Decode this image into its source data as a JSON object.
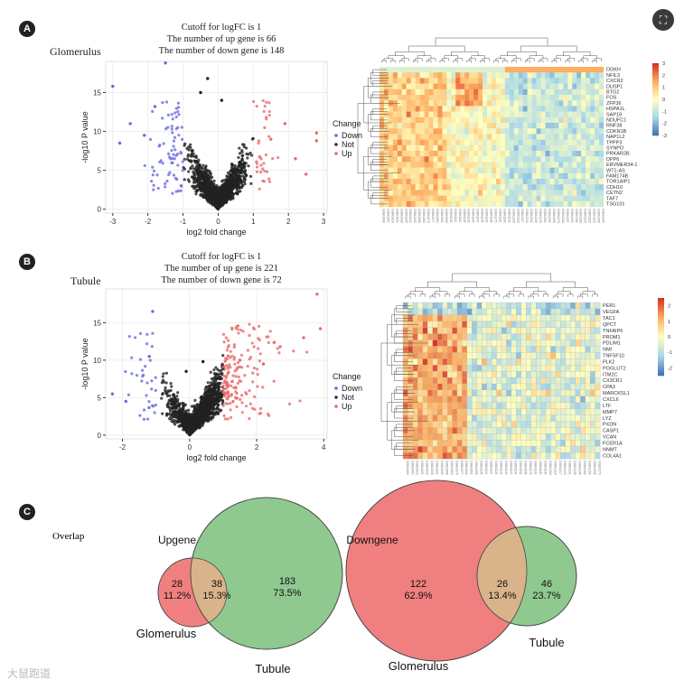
{
  "panel_labels": [
    "A",
    "B",
    "C"
  ],
  "panelA": {
    "tissue": "Glomerulus",
    "caption": [
      "Cutoff for logFC is 1",
      "The number of up gene is 66",
      "The number of down gene is 148"
    ]
  },
  "panelB": {
    "tissue": "Tubule",
    "caption": [
      "Cutoff for logFC is 1",
      "The number of up gene is 221",
      "The number of down gene is 72"
    ]
  },
  "legend": {
    "title": "Change",
    "items": [
      {
        "label": "Down",
        "color": "#6b6bdc"
      },
      {
        "label": "Not",
        "color": "#333333"
      },
      {
        "label": "Up",
        "color": "#e86a6a"
      }
    ]
  },
  "chart_data": [
    {
      "type": "scatter",
      "title": "Glomerulus volcano plot",
      "xlabel": "log2 fold change",
      "ylabel": "-log10 P value",
      "xlim": [
        -3.2,
        3.1
      ],
      "ylim": [
        -0.5,
        19
      ],
      "xticks": [
        "-3",
        "-2",
        "-1",
        "0",
        "1",
        "2",
        "3"
      ],
      "yticks": [
        "0",
        "5",
        "10",
        "15"
      ],
      "cutoff_logFC": 1,
      "up_count": 66,
      "down_count": 148,
      "highlight_points": {
        "Down": [
          [
            -3,
            15.8
          ],
          [
            -1.5,
            18.8
          ],
          [
            -2.5,
            11
          ],
          [
            -2.1,
            9.5
          ],
          [
            -1.8,
            13.2
          ],
          [
            -2.8,
            8.5
          ]
        ],
        "Up": [
          [
            2.8,
            9.8
          ],
          [
            2.2,
            6.5
          ],
          [
            1.9,
            11
          ],
          [
            1.5,
            9
          ],
          [
            2.5,
            4.5
          ],
          [
            2.8,
            8.8
          ]
        ],
        "Not": [
          [
            -0.3,
            16.8
          ],
          [
            0.1,
            14
          ],
          [
            -0.5,
            15
          ]
        ]
      }
    },
    {
      "type": "scatter",
      "title": "Tubule volcano plot",
      "xlabel": "log2 fold change",
      "ylabel": "-log10 P value",
      "xlim": [
        -2.5,
        4.1
      ],
      "ylim": [
        -0.5,
        19.5
      ],
      "xticks": [
        "-2",
        "0",
        "2",
        "4"
      ],
      "yticks": [
        "0",
        "5",
        "10",
        "15"
      ],
      "cutoff_logFC": 1,
      "up_count": 221,
      "down_count": 72,
      "highlight_points": {
        "Down": [
          [
            -1.1,
            16.5
          ],
          [
            -2.3,
            5.5
          ],
          [
            -1.9,
            4.5
          ],
          [
            -1.2,
            10.5
          ]
        ],
        "Up": [
          [
            3.8,
            18.8
          ],
          [
            3.9,
            14.2
          ],
          [
            3.4,
            13
          ],
          [
            2.7,
            11.8
          ],
          [
            2.2,
            9.5
          ],
          [
            1.5,
            10
          ]
        ],
        "Not": [
          [
            -0.1,
            8.5
          ],
          [
            0.4,
            9.8
          ]
        ]
      }
    },
    {
      "type": "heatmap",
      "title": "Glomerulus heatmap",
      "rows": [
        "DGKH",
        "NFIL3",
        "CXCR2",
        "DUSP1",
        "BTG2",
        "FOS",
        "ZFP36",
        "HSPA1L",
        "SAP18",
        "NDUFC1",
        "RNF38",
        "CDKN1B",
        "NAP1L2",
        "TPPP3",
        "SYNPO",
        "PRKAR2B",
        "DPP6",
        "ERVMER34-1",
        "WT1-AS",
        "FAM174B",
        "TOR1AIP1",
        "CDH10",
        "CETN2",
        "TAF7",
        "TSG101"
      ],
      "colorbar": {
        "ticks": [
          "3",
          "2",
          "1",
          "0",
          "-1",
          "-2",
          "-3"
        ],
        "range": [
          -3,
          3
        ]
      }
    },
    {
      "type": "heatmap",
      "title": "Tubule heatmap",
      "rows": [
        "PER1",
        "VEGFA",
        "TAC1",
        "QPCT",
        "TNFAIP6",
        "PROM1",
        "PDLIM1",
        "NMI",
        "TNFSF10",
        "PLK2",
        "POGLUT2",
        "ITM2C",
        "CX3CR1",
        "CPA3",
        "MARCKSL1",
        "CXCL6",
        "LTF",
        "MMP7",
        "LYZ",
        "PXDN",
        "CASP1",
        "VCAN",
        "FCER1A",
        "NNMT",
        "COL4A1"
      ],
      "colorbar": {
        "ticks": [
          "2",
          "1",
          "0",
          "-1",
          "-2"
        ],
        "range": [
          -2.5,
          2.5
        ]
      }
    }
  ],
  "panelC": {
    "label": "Overlap",
    "upgene": {
      "title": "Upgene",
      "left": {
        "name": "Glomerulus",
        "count": "28",
        "pct": "11.2%"
      },
      "both": {
        "count": "38",
        "pct": "15.3%"
      },
      "right": {
        "name": "Tubule",
        "count": "183",
        "pct": "73.5%"
      }
    },
    "downgene": {
      "title": "Downgene",
      "left": {
        "name": "Glomerulus",
        "count": "122",
        "pct": "62.9%"
      },
      "both": {
        "count": "26",
        "pct": "13.4%"
      },
      "right": {
        "name": "Tubule",
        "count": "46",
        "pct": "23.7%"
      }
    }
  },
  "watermark": "大鼠跑道",
  "colors": {
    "venn_red": "#f08080",
    "venn_green": "#8fc98f",
    "venn_overlap": "#d9b48a"
  }
}
